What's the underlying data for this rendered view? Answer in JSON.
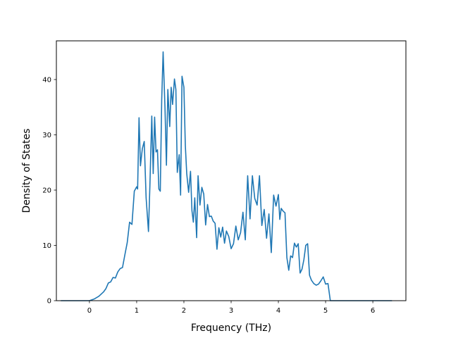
{
  "chart_data": {
    "type": "line",
    "title": "",
    "xlabel": "Frequency (THz)",
    "ylabel": "Density of States",
    "xlim": [
      -0.7,
      6.7
    ],
    "ylim": [
      0,
      47
    ],
    "x_ticks": [
      0,
      1,
      2,
      3,
      4,
      5,
      6
    ],
    "y_ticks": [
      0,
      10,
      20,
      30,
      40
    ],
    "grid": false,
    "legend": "none",
    "line_color": "#1f77b4",
    "series": [
      {
        "x": [
          -0.6,
          -0.4,
          -0.2,
          0.0,
          0.1,
          0.2,
          0.3,
          0.35,
          0.4,
          0.45,
          0.5,
          0.55,
          0.6,
          0.65,
          0.7,
          0.75,
          0.8,
          0.85,
          0.9,
          0.95,
          1.0,
          1.02,
          1.05,
          1.08,
          1.12,
          1.16,
          1.2,
          1.25,
          1.28,
          1.32,
          1.35,
          1.38,
          1.41,
          1.44,
          1.47,
          1.5,
          1.53,
          1.56,
          1.6,
          1.63,
          1.66,
          1.7,
          1.73,
          1.76,
          1.8,
          1.83,
          1.86,
          1.9,
          1.93,
          1.96,
          2.0,
          2.03,
          2.06,
          2.1,
          2.14,
          2.17,
          2.2,
          2.23,
          2.27,
          2.3,
          2.34,
          2.38,
          2.42,
          2.46,
          2.5,
          2.54,
          2.58,
          2.62,
          2.66,
          2.7,
          2.74,
          2.78,
          2.82,
          2.86,
          2.9,
          2.95,
          3.0,
          3.05,
          3.1,
          3.15,
          3.2,
          3.25,
          3.3,
          3.35,
          3.4,
          3.45,
          3.5,
          3.55,
          3.6,
          3.65,
          3.7,
          3.75,
          3.8,
          3.85,
          3.9,
          3.95,
          4.0,
          4.03,
          4.06,
          4.1,
          4.14,
          4.18,
          4.22,
          4.26,
          4.3,
          4.34,
          4.38,
          4.42,
          4.46,
          4.5,
          4.54,
          4.58,
          4.62,
          4.66,
          4.7,
          4.75,
          4.8,
          4.85,
          4.9,
          4.95,
          5.0,
          5.05,
          5.1,
          5.15,
          5.2,
          5.25,
          5.3,
          5.35,
          5.4,
          5.5,
          5.6,
          5.65,
          5.7,
          5.75,
          5.8,
          5.85,
          5.9,
          6.0,
          6.2,
          6.4
        ],
        "y": [
          0,
          0,
          0,
          0,
          0.3,
          0.8,
          1.6,
          2.2,
          3.2,
          3.4,
          4.2,
          4.1,
          5.2,
          5.8,
          6.0,
          8.3,
          10.5,
          14.2,
          13.8,
          19.8,
          20.6,
          20.2,
          33.1,
          24.4,
          27.5,
          28.8,
          18.6,
          12.5,
          20.8,
          33.4,
          23.0,
          33.2,
          26.9,
          27.3,
          20.2,
          19.8,
          36.3,
          45.0,
          34.7,
          24.5,
          38.2,
          31.5,
          38.6,
          35.5,
          40.1,
          38.2,
          23.2,
          26.4,
          19.1,
          40.6,
          38.6,
          28.1,
          23.0,
          19.6,
          23.4,
          16.3,
          14.2,
          18.6,
          11.4,
          22.6,
          17.3,
          20.5,
          19.3,
          13.7,
          17.4,
          15.2,
          15.3,
          14.4,
          14.0,
          9.3,
          13.2,
          11.5,
          13.3,
          10.4,
          12.6,
          11.6,
          9.4,
          10.3,
          13.5,
          11.0,
          12.3,
          16.0,
          11.0,
          22.6,
          14.8,
          22.6,
          18.5,
          17.3,
          22.6,
          13.6,
          16.5,
          11.3,
          15.7,
          8.7,
          19.1,
          17.1,
          19.2,
          14.7,
          16.7,
          16.2,
          15.9,
          7.8,
          5.5,
          8.1,
          7.8,
          10.4,
          9.7,
          10.3,
          5.0,
          5.7,
          7.4,
          10.0,
          10.3,
          4.6,
          3.7,
          3.1,
          2.8,
          3.0,
          3.6,
          4.3,
          3.0,
          3.1,
          0,
          0,
          0,
          0,
          0,
          0,
          0,
          0,
          0,
          0,
          0,
          0,
          0,
          0,
          0,
          0,
          0,
          0
        ]
      }
    ]
  }
}
